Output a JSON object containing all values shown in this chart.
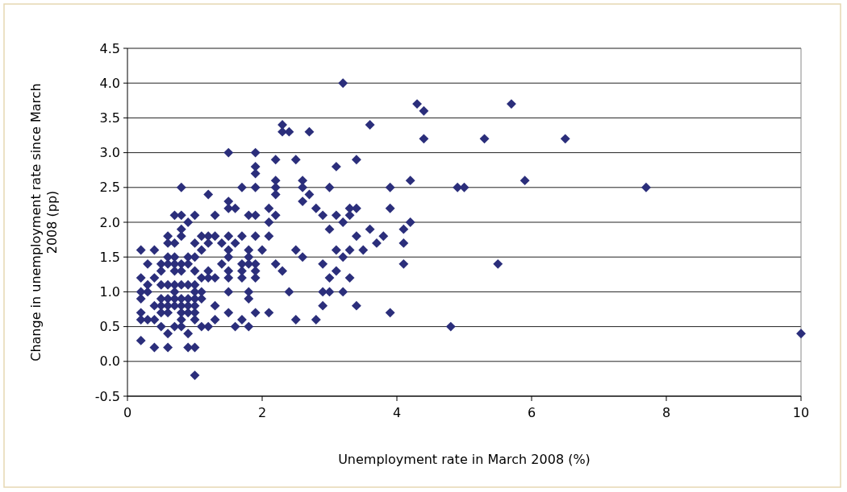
{
  "chart_data": {
    "type": "scatter",
    "xlabel": "Unemployment rate in March 2008 (%)",
    "ylabel": "Change in unemployment rate since March 2008 (pp)",
    "xlim": [
      0,
      10
    ],
    "xticks": [
      0,
      2,
      4,
      6,
      8,
      10
    ],
    "ylim": [
      -0.5,
      4.5
    ],
    "yticks": [
      -0.5,
      {
        "value": 0,
        "label": "0.0"
      },
      0.5,
      {
        "value": 1,
        "label": "1.0"
      },
      1.5,
      {
        "value": 2,
        "label": "2.0"
      },
      2.5,
      {
        "value": 3,
        "label": "3.0"
      },
      3.5,
      {
        "value": 4,
        "label": "4.0"
      },
      4.5
    ],
    "grid": "y",
    "marker": "diamond",
    "series": [
      {
        "color": "#2b2e7b",
        "x": [
          0.2,
          0.2,
          0.2,
          0.2,
          0.2,
          0.2,
          0.2,
          0.3,
          0.3,
          0.3,
          0.3,
          0.4,
          0.4,
          0.4,
          0.4,
          0.4,
          0.5,
          0.5,
          0.5,
          0.5,
          0.5,
          0.5,
          0.5,
          0.6,
          0.6,
          0.6,
          0.6,
          0.6,
          0.6,
          0.6,
          0.6,
          0.6,
          0.6,
          0.7,
          0.7,
          0.7,
          0.7,
          0.7,
          0.7,
          0.7,
          0.7,
          0.7,
          0.7,
          0.8,
          0.8,
          0.8,
          0.8,
          0.8,
          0.8,
          0.8,
          0.8,
          0.8,
          0.8,
          0.8,
          0.8,
          0.9,
          0.9,
          0.9,
          0.9,
          0.9,
          0.9,
          0.9,
          0.9,
          0.9,
          1.0,
          1.0,
          1.0,
          1.0,
          1.0,
          1.0,
          1.0,
          1.0,
          1.0,
          1.0,
          1.0,
          1.0,
          1.1,
          1.1,
          1.1,
          1.1,
          1.1,
          1.1,
          1.2,
          1.2,
          1.2,
          1.2,
          1.2,
          1.2,
          1.3,
          1.3,
          1.3,
          1.3,
          1.3,
          1.4,
          1.4,
          1.5,
          1.5,
          1.5,
          1.5,
          1.5,
          1.5,
          1.5,
          1.5,
          1.5,
          1.5,
          1.6,
          1.6,
          1.6,
          1.7,
          1.7,
          1.7,
          1.7,
          1.7,
          1.7,
          1.8,
          1.8,
          1.8,
          1.8,
          1.8,
          1.8,
          1.8,
          1.9,
          1.9,
          1.9,
          1.9,
          1.9,
          1.9,
          1.9,
          1.9,
          1.9,
          1.9,
          2.0,
          2.1,
          2.1,
          2.1,
          2.1,
          2.2,
          2.2,
          2.2,
          2.2,
          2.2,
          2.2,
          2.3,
          2.3,
          2.3,
          2.4,
          2.4,
          2.5,
          2.5,
          2.5,
          2.6,
          2.6,
          2.6,
          2.6,
          2.7,
          2.7,
          2.8,
          2.8,
          2.9,
          2.9,
          2.9,
          2.9,
          3.0,
          3.0,
          3.0,
          3.0,
          3.1,
          3.1,
          3.1,
          3.1,
          3.2,
          3.2,
          3.2,
          3.2,
          3.3,
          3.3,
          3.3,
          3.3,
          3.4,
          3.4,
          3.4,
          3.4,
          3.5,
          3.6,
          3.6,
          3.7,
          3.8,
          3.9,
          3.9,
          3.9,
          4.1,
          4.1,
          4.1,
          4.2,
          4.2,
          4.3,
          4.4,
          4.4,
          4.8,
          4.9,
          5.0,
          5.3,
          5.5,
          5.7,
          5.9,
          6.5,
          7.7,
          10
        ],
        "values": [
          1.6,
          1.2,
          1.0,
          0.9,
          0.7,
          0.6,
          0.3,
          1.4,
          1.1,
          1.0,
          0.6,
          1.6,
          1.2,
          0.8,
          0.6,
          0.2,
          1.4,
          1.3,
          1.1,
          0.9,
          0.8,
          0.7,
          0.5,
          1.8,
          1.7,
          1.5,
          1.4,
          1.1,
          0.9,
          0.8,
          0.7,
          0.4,
          0.2,
          2.1,
          1.7,
          1.5,
          1.4,
          1.3,
          1.1,
          1.0,
          0.9,
          0.8,
          0.5,
          2.5,
          2.1,
          1.9,
          1.8,
          1.4,
          1.3,
          1.1,
          0.9,
          0.8,
          0.7,
          0.6,
          0.5,
          2.0,
          1.5,
          1.4,
          1.1,
          0.9,
          0.8,
          0.7,
          0.4,
          0.2,
          2.1,
          1.7,
          1.5,
          1.3,
          1.1,
          1.0,
          0.9,
          0.8,
          0.7,
          0.6,
          0.2,
          -0.2,
          1.8,
          1.6,
          1.2,
          1.0,
          0.9,
          0.5,
          2.4,
          1.8,
          1.7,
          1.3,
          1.2,
          0.5,
          2.1,
          1.8,
          1.2,
          0.8,
          0.6,
          1.7,
          1.4,
          3.0,
          2.3,
          2.2,
          1.8,
          1.6,
          1.5,
          1.3,
          1.2,
          1.0,
          0.7,
          2.2,
          1.7,
          0.5,
          2.5,
          1.8,
          1.4,
          1.3,
          1.2,
          0.6,
          2.1,
          1.6,
          1.5,
          1.4,
          1.0,
          0.9,
          0.5,
          3.0,
          2.8,
          2.7,
          2.5,
          2.1,
          1.8,
          1.4,
          1.3,
          1.2,
          0.7,
          1.6,
          2.2,
          2.0,
          1.8,
          0.7,
          2.9,
          2.6,
          2.5,
          2.4,
          2.1,
          1.4,
          3.4,
          3.3,
          1.3,
          3.3,
          1.0,
          2.9,
          1.6,
          0.6,
          2.6,
          2.5,
          2.3,
          1.5,
          3.3,
          2.4,
          2.2,
          0.6,
          2.1,
          1.4,
          1.0,
          0.8,
          2.5,
          1.9,
          1.2,
          1.0,
          2.8,
          2.1,
          1.6,
          1.3,
          4.0,
          2.0,
          1.5,
          1.0,
          2.2,
          2.1,
          1.6,
          1.2,
          2.9,
          2.2,
          1.8,
          0.8,
          1.6,
          3.4,
          1.9,
          1.7,
          1.8,
          2.5,
          2.2,
          0.7,
          1.9,
          1.7,
          1.4,
          2.6,
          2.0,
          3.7,
          3.6,
          3.2,
          0.5,
          2.5,
          2.5,
          3.2,
          1.4,
          3.7,
          2.6,
          3.2,
          2.5,
          0.4
        ]
      }
    ]
  }
}
